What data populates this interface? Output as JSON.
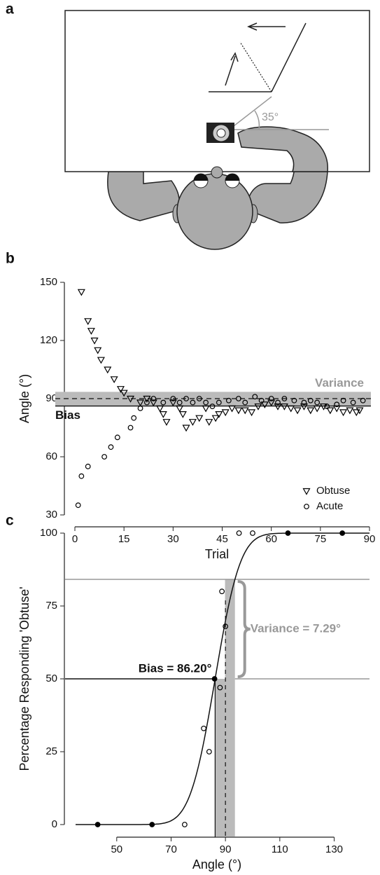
{
  "diagram": {
    "label": "a",
    "angle_label": "35°"
  },
  "chart_data": [
    {
      "type": "scatter",
      "label": "b",
      "x_label": "Trial",
      "y_label": "Angle (°)",
      "xlim": [
        0,
        90
      ],
      "ylim": [
        30,
        150
      ],
      "xticks": [
        0,
        15,
        30,
        45,
        60,
        75,
        90
      ],
      "yticks": [
        30,
        60,
        90,
        120,
        150
      ],
      "bias": 86.2,
      "variance": 7.29,
      "reference": 90,
      "bias_label": "Bias",
      "variance_label": "Variance",
      "legend": "bottom-right",
      "series": [
        {
          "name": "Obtuse",
          "marker": "triangle-down",
          "color": "#000",
          "x": [
            2,
            4,
            5,
            6,
            7,
            8,
            10,
            12,
            14,
            15,
            17,
            20,
            22,
            24,
            26,
            27,
            28,
            30,
            32,
            33,
            34,
            36,
            38,
            40,
            41,
            43,
            44,
            46,
            48,
            50,
            52,
            54,
            56,
            58,
            60,
            62,
            64,
            66,
            68,
            70,
            72,
            74,
            76,
            78,
            80,
            82,
            84,
            86,
            87
          ],
          "values": [
            145,
            130,
            125,
            120,
            115,
            110,
            105,
            100,
            95,
            93,
            90,
            88,
            90,
            88,
            85,
            82,
            78,
            88,
            85,
            82,
            75,
            78,
            80,
            85,
            78,
            80,
            82,
            83,
            85,
            84,
            84,
            83,
            86,
            87,
            88,
            86,
            86,
            85,
            84,
            86,
            84,
            85,
            86,
            84,
            85,
            83,
            84,
            83,
            84
          ]
        },
        {
          "name": "Acute",
          "marker": "circle-open",
          "color": "#000",
          "x": [
            1,
            2,
            4,
            9,
            11,
            13,
            17,
            18,
            20,
            22,
            24,
            27,
            30,
            32,
            34,
            36,
            38,
            40,
            42,
            44,
            47,
            50,
            52,
            55,
            57,
            60,
            62,
            64,
            67,
            70,
            72,
            74,
            77,
            80,
            82,
            85,
            88
          ],
          "values": [
            35,
            50,
            55,
            60,
            65,
            70,
            75,
            80,
            85,
            88,
            90,
            88,
            90,
            88,
            90,
            88,
            90,
            88,
            86,
            88,
            89,
            90,
            88,
            91,
            89,
            90,
            88,
            90,
            89,
            88,
            89,
            88,
            86,
            87,
            89,
            88,
            89
          ]
        }
      ]
    },
    {
      "type": "scatter",
      "label": "c",
      "x_label": "Angle (°)",
      "y_label": "Percentage Responding 'Obtuse'",
      "xlim": [
        31,
        143
      ],
      "ylim": [
        0,
        100
      ],
      "xticks": [
        50,
        70,
        90,
        110,
        130
      ],
      "yticks": [
        0,
        25,
        50,
        75,
        100
      ],
      "fit": {
        "mean": 86.2,
        "sd": 7.29
      },
      "reference": 90,
      "bias_label": "Bias = 86.20°",
      "variance_label": "Variance = 7.29°",
      "series": [
        {
          "marker": "circle-filled",
          "color": "#000",
          "x": [
            43,
            63,
            86,
            113,
            133
          ],
          "values": [
            0,
            0,
            50,
            100,
            100
          ]
        },
        {
          "marker": "circle-open",
          "color": "#000",
          "x": [
            75,
            82,
            84,
            88,
            88.7,
            90,
            95,
            100
          ],
          "values": [
            0,
            33,
            25,
            47,
            80,
            68,
            100,
            100
          ]
        }
      ]
    }
  ]
}
